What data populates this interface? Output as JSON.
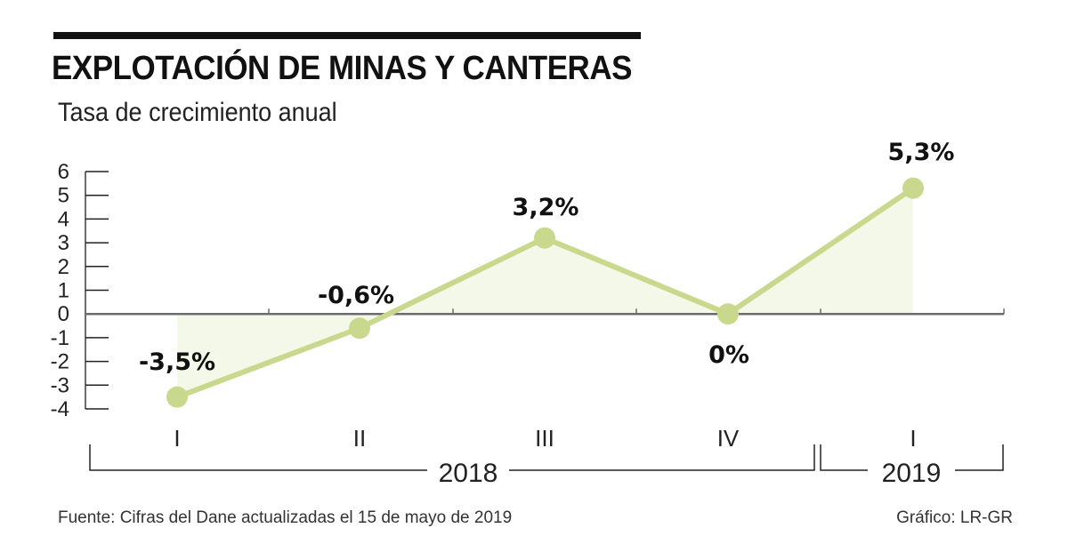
{
  "header": {
    "title": "EXPLOTACIÓN DE MINAS Y CANTERAS",
    "subtitle": "Tasa de crecimiento anual"
  },
  "footer": {
    "source": "Fuente: Cifras del Dane actualizadas el 15 de mayo de 2019",
    "credit": "Gráfico: LR-GR"
  },
  "colors": {
    "line": "#c8d98e",
    "fill": "#f3f8e8",
    "axis": "#6b6b6b",
    "text": "#111111"
  },
  "chart_data": {
    "type": "line",
    "title": "EXPLOTACIÓN DE MINAS Y CANTERAS",
    "subtitle": "Tasa de crecimiento anual",
    "xlabel": "",
    "ylabel": "",
    "categories": [
      "I",
      "II",
      "III",
      "IV",
      "I"
    ],
    "groups": [
      {
        "label": "2018",
        "categories": [
          "I",
          "II",
          "III",
          "IV"
        ]
      },
      {
        "label": "2019",
        "categories": [
          "I"
        ]
      }
    ],
    "series": [
      {
        "name": "Tasa de crecimiento anual",
        "values": [
          -3.5,
          -0.6,
          3.2,
          0,
          5.3
        ],
        "labels": [
          "-3,5%",
          "-0,6%",
          "3,2%",
          "0%",
          "5,3%"
        ]
      }
    ],
    "ylim": [
      -4,
      6
    ],
    "yticks": [
      6,
      5,
      4,
      3,
      2,
      1,
      0,
      -1,
      -2,
      -3,
      -4
    ],
    "grid": false,
    "area_fill": true,
    "legend": "none"
  }
}
